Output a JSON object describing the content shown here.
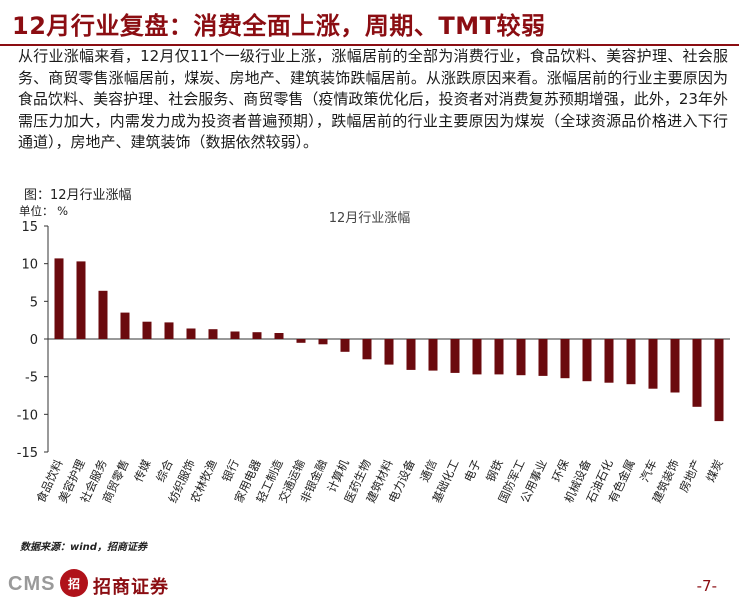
{
  "page": {
    "title": "12月行业复盘：消费全面上涨，周期、TMT较弱",
    "summary": "从行业涨幅来看，12月仅11个一级行业上涨，涨幅居前的全部为消费行业，食品饮料、美容护理、社会服务、商贸零售涨幅居前，煤炭、房地产、建筑装饰跌幅居前。从涨跌原因来看。涨幅居前的行业主要原因为食品饮料、美容护理、社会服务、商贸零售（疫情政策优化后，投资者对消费复苏预期增强，此外，23年外需压力加大，内需发力成为投资者普遍预期），跌幅居前的行业主要原因为煤炭（全球资源品价格进入下行通道），房地产、建筑装饰（数据依然较弱）。",
    "figure_caption": "图：12月行业涨幅",
    "unit_label": "单位：  %",
    "source": "数据来源：wind，招商证券",
    "footer_logo_cms": "CMS",
    "footer_logo_mark": "招",
    "footer_logo_text": "招商证券",
    "page_number": "-7-"
  },
  "colors": {
    "bar": "#6B0A0E",
    "title": "#8B0D12",
    "axis": "#333333"
  },
  "chart_data": {
    "type": "bar",
    "title": "12月行业涨幅",
    "ylabel": "%",
    "ylim": [
      -15,
      15
    ],
    "yticks": [
      15,
      10,
      5,
      0,
      -5,
      -10,
      -15
    ],
    "grid": false,
    "categories": [
      "食品饮料",
      "美容护理",
      "社会服务",
      "商贸零售",
      "传媒",
      "综合",
      "纺织服饰",
      "农林牧渔",
      "银行",
      "家用电器",
      "轻工制造",
      "交通运输",
      "非银金融",
      "计算机",
      "医药生物",
      "建筑材料",
      "电力设备",
      "通信",
      "基础化工",
      "电子",
      "钢铁",
      "国防军工",
      "公用事业",
      "环保",
      "机械设备",
      "石油石化",
      "有色金属",
      "汽车",
      "建筑装饰",
      "房地产",
      "煤炭"
    ],
    "values": [
      10.7,
      10.3,
      6.4,
      3.5,
      2.3,
      2.2,
      1.4,
      1.3,
      1.0,
      0.9,
      0.8,
      -0.5,
      -0.7,
      -1.7,
      -2.7,
      -3.4,
      -4.1,
      -4.2,
      -4.5,
      -4.7,
      -4.7,
      -4.8,
      -4.9,
      -5.2,
      -5.6,
      -5.8,
      -6.0,
      -6.6,
      -7.1,
      -9.0,
      -10.9
    ]
  }
}
